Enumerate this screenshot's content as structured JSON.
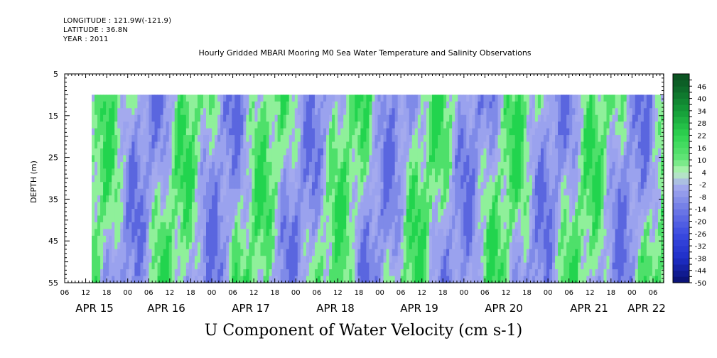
{
  "header": {
    "longitude": "LONGITUDE : 121.9W(-121.9)",
    "latitude": "LATITUDE : 36.8N",
    "year": "YEAR : 2011"
  },
  "chart_data": {
    "type": "heatmap",
    "title": "Hourly Gridded MBARI Mooring M0 Sea Water Temperature and Salinity Observations",
    "bottom_title": "U Component of Water Velocity (cm s-1)",
    "ylabel": "DEPTH (m)",
    "ylim": [
      5,
      55
    ],
    "y_inverted": true,
    "y_ticks": [
      5,
      15,
      25,
      35,
      45,
      55
    ],
    "data_depth_range": [
      10,
      55
    ],
    "x_hour_tick_labels": [
      "06",
      "12",
      "18",
      "00",
      "06",
      "12",
      "18",
      "00",
      "06",
      "12",
      "18",
      "00",
      "06",
      "12",
      "18",
      "00",
      "06",
      "12",
      "18",
      "00",
      "06",
      "12",
      "18",
      "00",
      "06",
      "12",
      "18",
      "00",
      "06"
    ],
    "x_day_labels": [
      "APR 15",
      "APR 16",
      "APR 17",
      "APR 18",
      "APR 19",
      "APR 20",
      "APR 21",
      "APR 22"
    ],
    "colorbar": {
      "labels": [
        "46",
        "40",
        "34",
        "28",
        "22",
        "16",
        "10",
        "4",
        "-2",
        "-8",
        "-14",
        "-20",
        "-26",
        "-32",
        "-38",
        "-44",
        "-50"
      ],
      "levels_min": -50,
      "levels_max": 52,
      "level_step": 3
    }
  }
}
